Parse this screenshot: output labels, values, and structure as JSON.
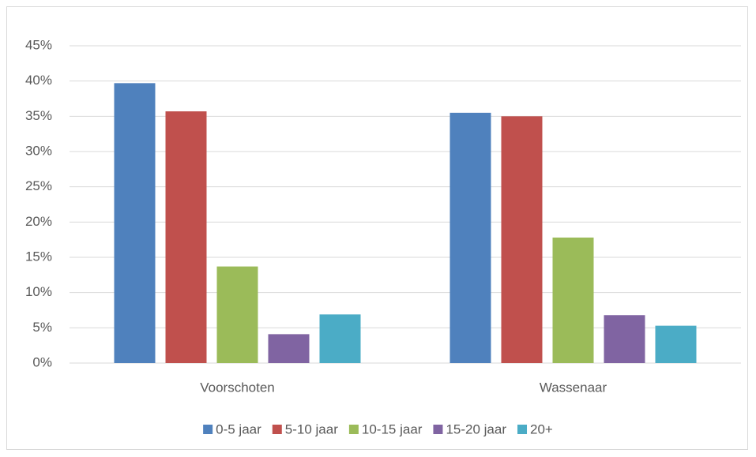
{
  "chart_data": {
    "type": "bar",
    "categories": [
      "Voorschoten",
      "Wassenaar"
    ],
    "series": [
      {
        "name": "0-5 jaar",
        "color": "#4f81bd",
        "values": [
          39.7,
          35.5
        ]
      },
      {
        "name": "5-10 jaar",
        "color": "#c0504d",
        "values": [
          35.7,
          35.0
        ]
      },
      {
        "name": "10-15 jaar",
        "color": "#9bbb59",
        "values": [
          13.7,
          17.8
        ]
      },
      {
        "name": "15-20 jaar",
        "color": "#8064a2",
        "values": [
          4.1,
          6.8
        ]
      },
      {
        "name": "20+",
        "color": "#4bacc6",
        "values": [
          6.9,
          5.3
        ]
      }
    ],
    "ylim": [
      0,
      45
    ],
    "yticks": [
      {
        "value": 0,
        "label": "0%"
      },
      {
        "value": 5,
        "label": "5%"
      },
      {
        "value": 10,
        "label": "10%"
      },
      {
        "value": 15,
        "label": "15%"
      },
      {
        "value": 20,
        "label": "20%"
      },
      {
        "value": 25,
        "label": "25%"
      },
      {
        "value": 30,
        "label": "30%"
      },
      {
        "value": 35,
        "label": "35%"
      },
      {
        "value": 40,
        "label": "40%"
      },
      {
        "value": 45,
        "label": "45%"
      }
    ],
    "grid": true,
    "legend": "bottom"
  }
}
